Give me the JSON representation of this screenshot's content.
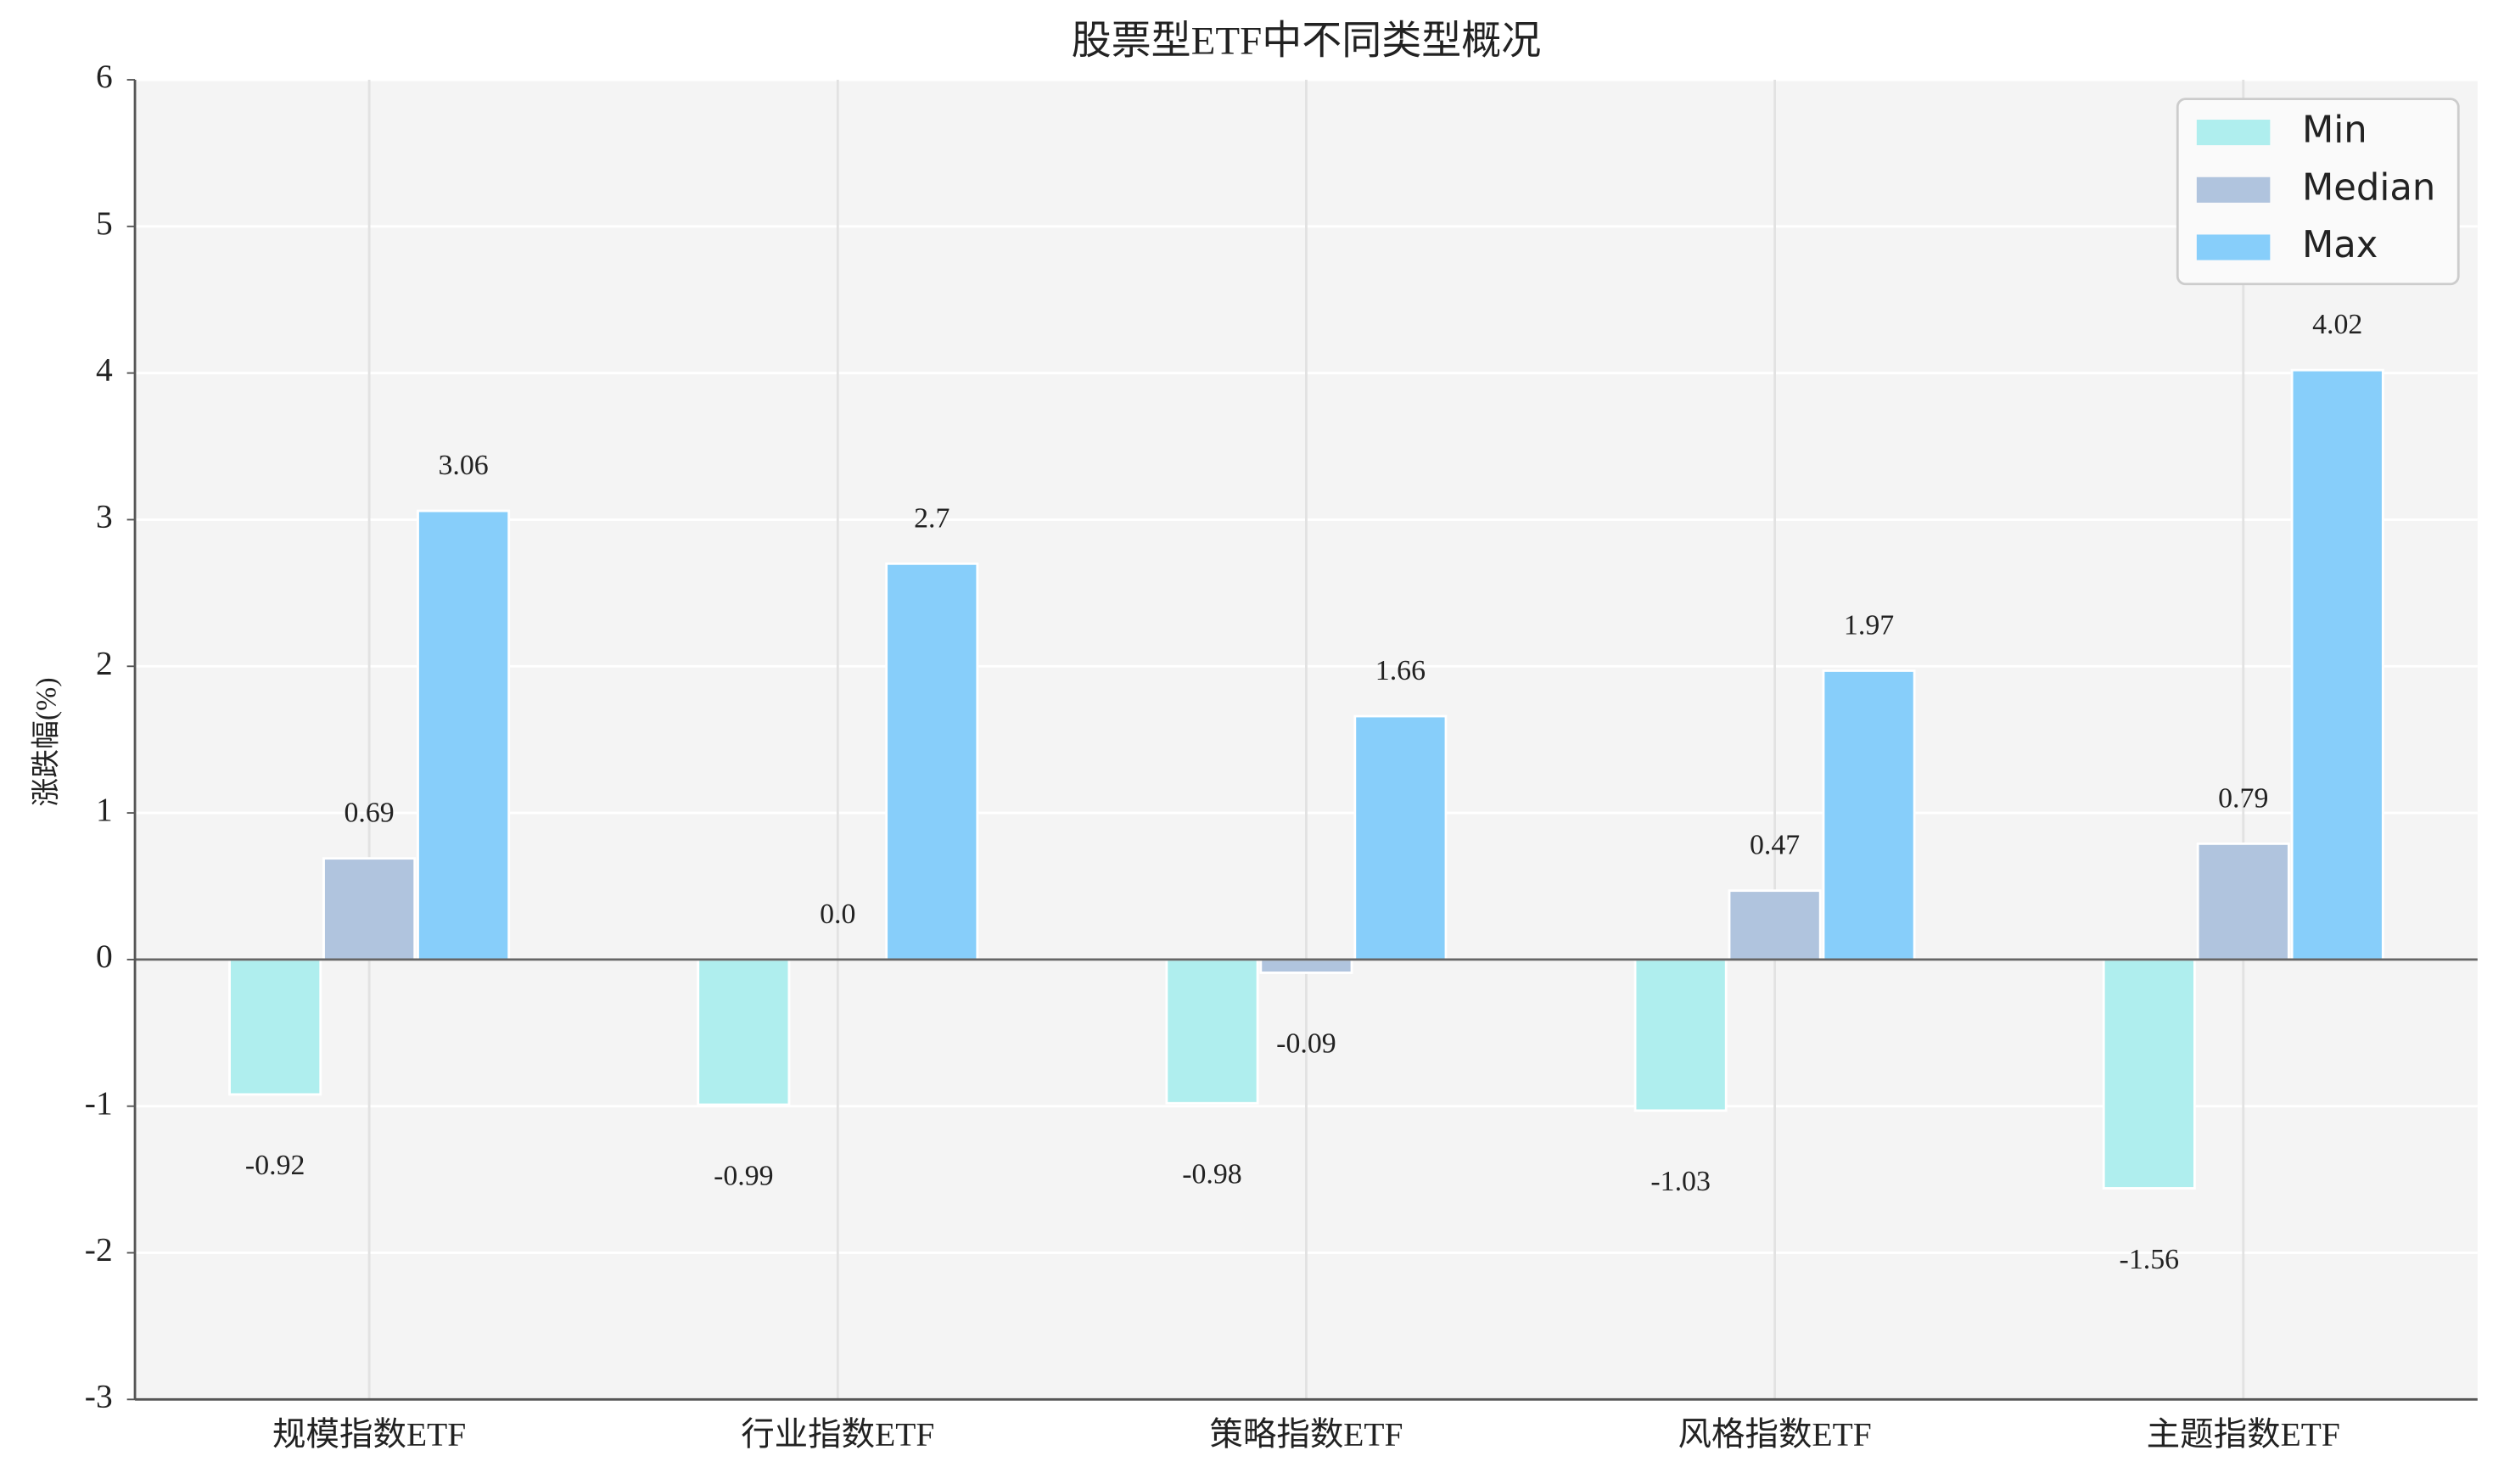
{
  "chart_data": {
    "type": "bar",
    "title": "股票型ETF中不同类型概况",
    "y_label": "涨跌幅(%)",
    "categories": [
      "规模指数ETF",
      "行业指数ETF",
      "策略指数ETF",
      "风格指数ETF",
      "主题指数ETF"
    ],
    "series": [
      {
        "name": "Min",
        "color": "#afeeee",
        "values": [
          -0.92,
          -0.99,
          -0.98,
          -1.03,
          -1.56
        ]
      },
      {
        "name": "Median",
        "color": "#b0c4de",
        "values": [
          0.69,
          0,
          -0.09,
          0.47,
          0.79
        ],
        "value_labels": [
          "0.69",
          "0.0",
          "-0.09",
          "0.47",
          "0.79"
        ]
      },
      {
        "name": "Max",
        "color": "#87cefa",
        "values": [
          3.06,
          2.7,
          1.66,
          1.97,
          4.02
        ]
      }
    ],
    "ylim": [
      -3,
      6
    ],
    "yticks": [
      -3,
      -2,
      -1,
      0,
      1,
      2,
      3,
      4,
      5,
      6
    ],
    "grid": true,
    "legend": "upper right"
  }
}
